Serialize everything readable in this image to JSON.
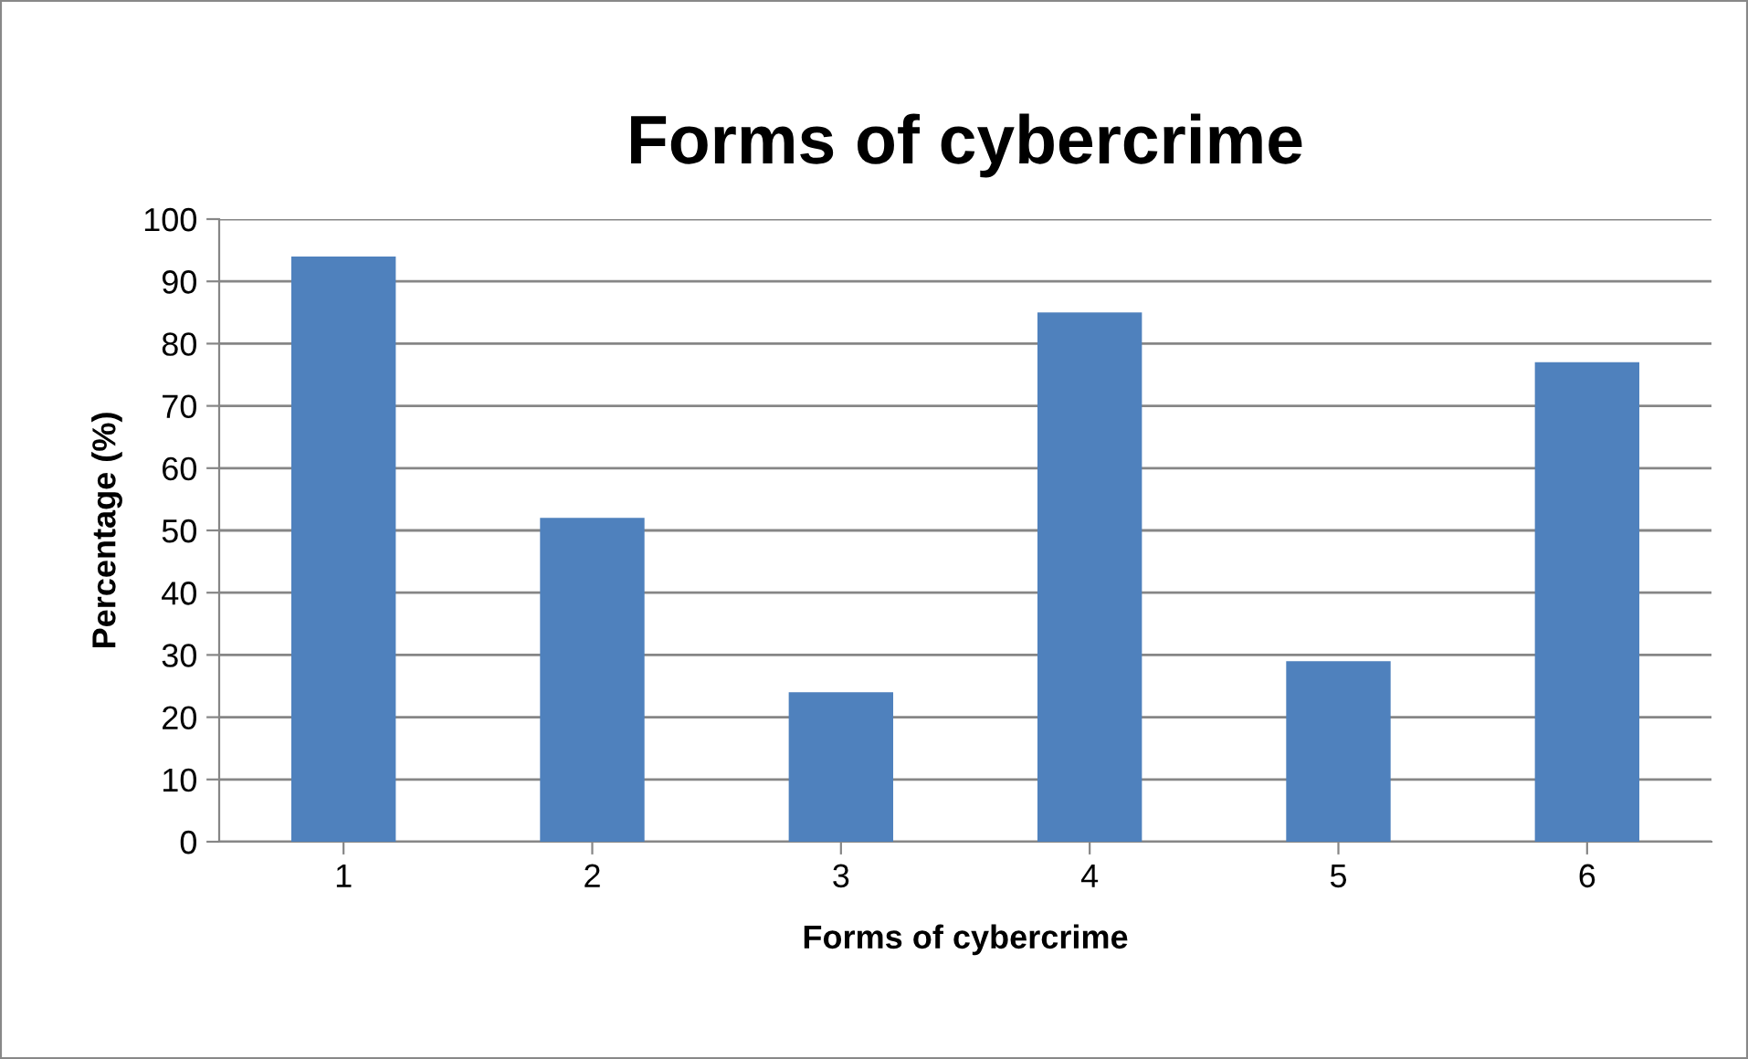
{
  "chart_data": {
    "type": "bar",
    "title": "Forms of cybercrime",
    "xlabel": "Forms of cybercrime",
    "ylabel": "Percentage (%)",
    "categories": [
      "1",
      "2",
      "3",
      "4",
      "5",
      "6"
    ],
    "values": [
      94,
      52,
      24,
      85,
      29,
      77
    ],
    "color": "#4f81bd",
    "ylim": [
      0,
      100
    ],
    "yticks": [
      0,
      10,
      20,
      30,
      40,
      50,
      60,
      70,
      80,
      90,
      100
    ],
    "grid": "y",
    "legend": false
  }
}
